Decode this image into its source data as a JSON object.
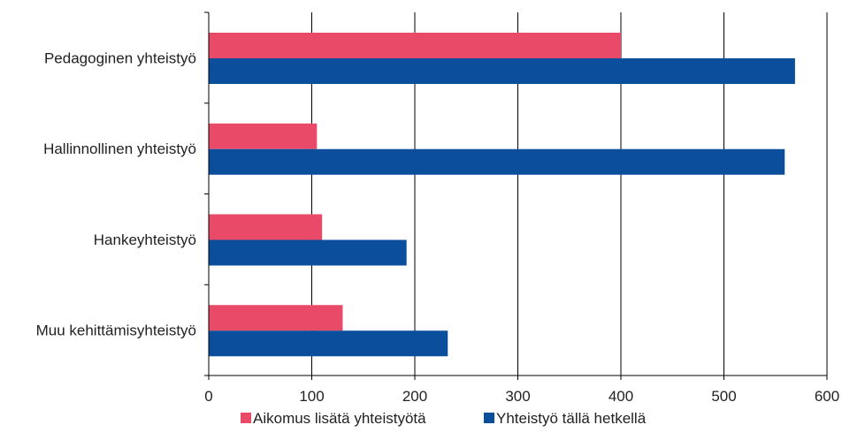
{
  "chart_data": {
    "type": "bar",
    "orientation": "horizontal",
    "categories": [
      "Pedagoginen yhteistyö",
      "Hallinnollinen yhteistyö",
      "Hankeyhteistyö",
      "Muu kehittämisyhteistyö"
    ],
    "series": [
      {
        "name": "Aikomus lisätä yhteistyötä",
        "color": "#e84a67",
        "values": [
          400,
          105,
          110,
          130
        ]
      },
      {
        "name": "Yhteistyö tällä hetkellä",
        "color": "#0b4e9c",
        "values": [
          569,
          559,
          192,
          232
        ]
      }
    ],
    "xlim": [
      0,
      600
    ],
    "xticks": [
      0,
      100,
      200,
      300,
      400,
      500,
      600
    ],
    "grid": "vertical",
    "legend": "bottom"
  }
}
